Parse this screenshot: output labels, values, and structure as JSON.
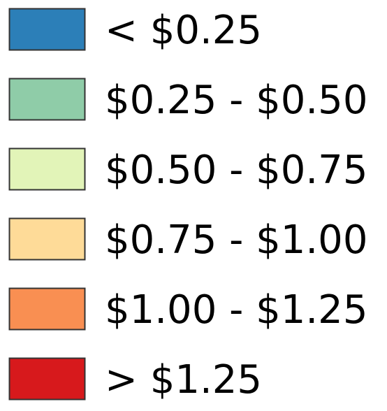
{
  "legend": {
    "items": [
      {
        "label": "< $0.25",
        "color": "#2c7fb8"
      },
      {
        "label": "$0.25 - $0.50",
        "color": "#8fcca8"
      },
      {
        "label": "$0.50 - $0.75",
        "color": "#e2f4b8"
      },
      {
        "label": "$0.75 - $1.00",
        "color": "#fedb98"
      },
      {
        "label": "$1.00 - $1.25",
        "color": "#f98f52"
      },
      {
        "label": "> $1.25",
        "color": "#d7191c"
      }
    ]
  }
}
